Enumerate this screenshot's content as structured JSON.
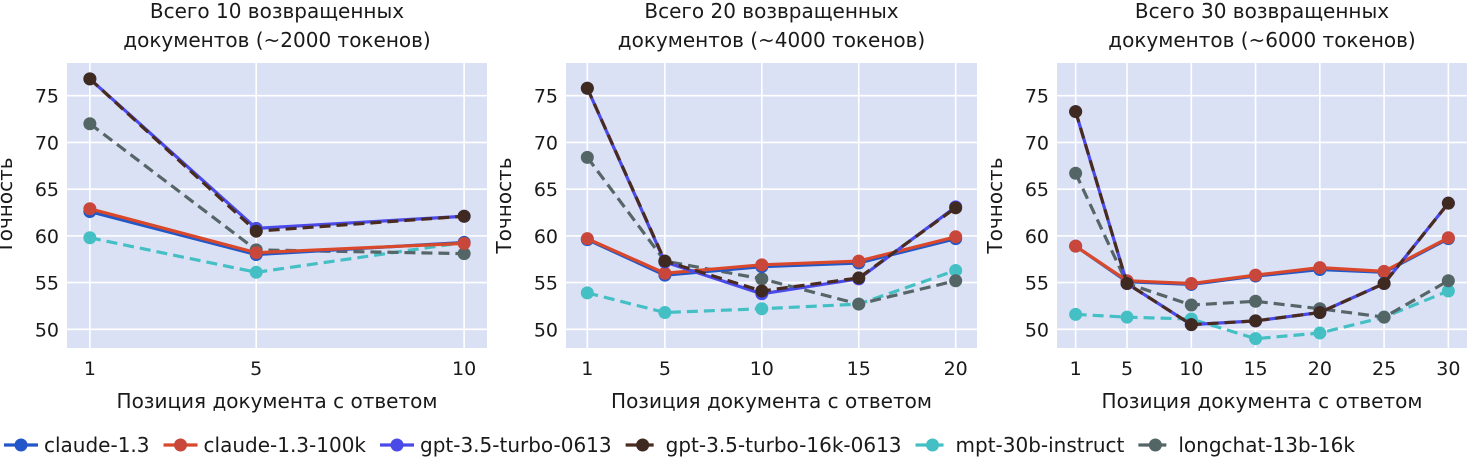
{
  "chart_data": [
    {
      "type": "line",
      "title_lines": [
        "Всего 10 возвращенных",
        "документов (~2000 токенов)"
      ],
      "xlabel": "Позиция документа с ответом",
      "ylabel": "Точность",
      "x": [
        1,
        5,
        10
      ],
      "xticks": [
        1,
        5,
        10
      ],
      "yticks": [
        50,
        55,
        60,
        65,
        70,
        75
      ],
      "xlim": [
        0.45,
        10.55
      ],
      "ylim": [
        48,
        78.5
      ],
      "series": [
        {
          "name": "claude-1.3",
          "values": [
            62.6,
            58.0,
            59.3
          ]
        },
        {
          "name": "claude-1.3-100k",
          "values": [
            62.9,
            58.2,
            59.2
          ]
        },
        {
          "name": "gpt-3.5-turbo-0613",
          "values": [
            76.8,
            60.8,
            62.1
          ]
        },
        {
          "name": "gpt-3.5-turbo-16k-0613",
          "values": [
            76.8,
            60.5,
            62.1
          ]
        },
        {
          "name": "mpt-30b-instruct",
          "values": [
            59.8,
            56.1,
            59.3
          ]
        },
        {
          "name": "longchat-13b-16k",
          "values": [
            72.0,
            58.5,
            58.1
          ]
        }
      ]
    },
    {
      "type": "line",
      "title_lines": [
        "Всего 20 возвращенных",
        "документов (~4000 токенов)"
      ],
      "xlabel": "Позиция документа с ответом",
      "ylabel": "Точность",
      "x": [
        1,
        5,
        10,
        15,
        20
      ],
      "xticks": [
        1,
        5,
        10,
        15,
        20
      ],
      "yticks": [
        50,
        55,
        60,
        65,
        70,
        75
      ],
      "xlim": [
        -0.1,
        21.1
      ],
      "ylim": [
        48,
        78.5
      ],
      "series": [
        {
          "name": "claude-1.3",
          "values": [
            59.6,
            55.8,
            56.7,
            57.1,
            59.7
          ]
        },
        {
          "name": "claude-1.3-100k",
          "values": [
            59.7,
            56.0,
            56.9,
            57.3,
            59.9
          ]
        },
        {
          "name": "gpt-3.5-turbo-0613",
          "values": [
            75.8,
            57.2,
            53.8,
            55.4,
            63.1
          ]
        },
        {
          "name": "gpt-3.5-turbo-16k-0613",
          "values": [
            75.8,
            57.3,
            54.1,
            55.5,
            63.0
          ]
        },
        {
          "name": "mpt-30b-instruct",
          "values": [
            53.9,
            51.8,
            52.2,
            52.7,
            56.3
          ]
        },
        {
          "name": "longchat-13b-16k",
          "values": [
            68.4,
            57.3,
            55.4,
            52.7,
            55.2
          ]
        }
      ]
    },
    {
      "type": "line",
      "title_lines": [
        "Всего 30 возвращенных",
        "документов (~6000 токенов)"
      ],
      "xlabel": "Позиция документа с ответом",
      "ylabel": "Точность",
      "x": [
        1,
        5,
        10,
        15,
        20,
        25,
        30
      ],
      "xticks": [
        1,
        5,
        10,
        15,
        20,
        25,
        30
      ],
      "yticks": [
        50,
        55,
        60,
        65,
        70,
        75
      ],
      "xlim": [
        -0.45,
        31.45
      ],
      "ylim": [
        48,
        78.5
      ],
      "series": [
        {
          "name": "claude-1.3",
          "values": [
            58.9,
            55.1,
            54.8,
            55.7,
            56.4,
            56.1,
            59.7
          ]
        },
        {
          "name": "claude-1.3-100k",
          "values": [
            58.9,
            55.2,
            54.9,
            55.8,
            56.6,
            56.2,
            59.8
          ]
        },
        {
          "name": "gpt-3.5-turbo-0613",
          "values": [
            73.3,
            54.9,
            50.5,
            50.9,
            51.8,
            54.9,
            63.5
          ]
        },
        {
          "name": "gpt-3.5-turbo-16k-0613",
          "values": [
            73.3,
            54.9,
            50.5,
            50.9,
            51.8,
            54.9,
            63.5
          ]
        },
        {
          "name": "mpt-30b-instruct",
          "values": [
            51.6,
            51.3,
            51.1,
            49.0,
            49.6,
            51.3,
            54.1
          ]
        },
        {
          "name": "longchat-13b-16k",
          "values": [
            66.7,
            54.9,
            52.6,
            53.0,
            52.2,
            51.3,
            55.2
          ]
        }
      ]
    }
  ],
  "legend": {
    "placement": "bottom",
    "entries": [
      {
        "name": "claude-1.3",
        "color": "#2157c8",
        "dashed": false,
        "markerColor": "#2157c8"
      },
      {
        "name": "claude-1.3-100k",
        "color": "#d9482b",
        "dashed": false,
        "markerColor": "#c8473a"
      },
      {
        "name": "gpt-3.5-turbo-0613",
        "color": "#4a4ae8",
        "dashed": false,
        "markerColor": "#4a4ae8"
      },
      {
        "name": "gpt-3.5-turbo-16k-0613",
        "color": "#4a2b1f",
        "dashed": true,
        "markerColor": "#3f2a22"
      },
      {
        "name": "mpt-30b-instruct",
        "color": "#44c0c4",
        "dashed": true,
        "markerColor": "#44c0c4"
      },
      {
        "name": "longchat-13b-16k",
        "color": "#566668",
        "dashed": true,
        "markerColor": "#546566"
      }
    ]
  },
  "style": {
    "plot_background": "#dbe1f5",
    "grid_color": "#ffffff"
  }
}
